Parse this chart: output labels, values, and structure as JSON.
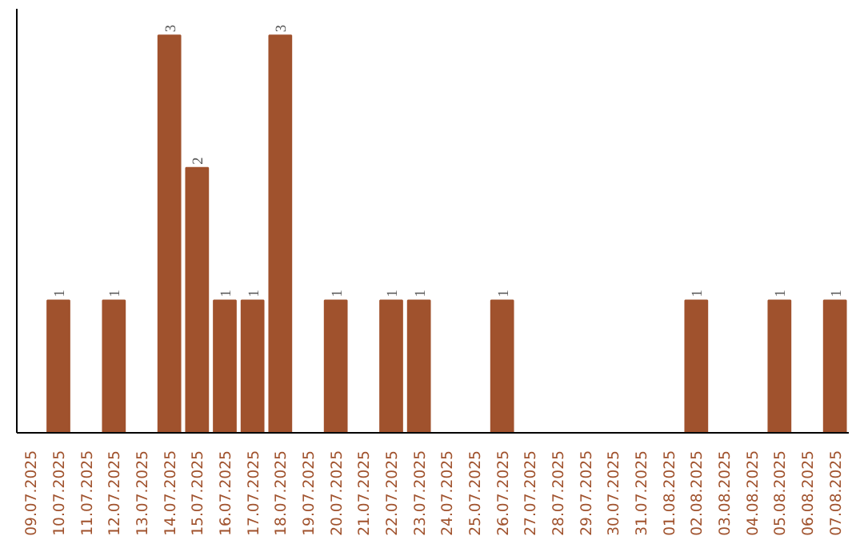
{
  "chart_data": {
    "type": "bar",
    "categories": [
      "09.07.2025",
      "10.07.2025",
      "11.07.2025",
      "12.07.2025",
      "13.07.2025",
      "14.07.2025",
      "15.07.2025",
      "16.07.2025",
      "17.07.2025",
      "18.07.2025",
      "19.07.2025",
      "20.07.2025",
      "21.07.2025",
      "22.07.2025",
      "23.07.2025",
      "24.07.2025",
      "25.07.2025",
      "26.07.2025",
      "27.07.2025",
      "28.07.2025",
      "29.07.2025",
      "30.07.2025",
      "31.07.2025",
      "01.08.2025",
      "02.08.2025",
      "03.08.2025",
      "04.08.2025",
      "05.08.2025",
      "06.08.2025",
      "07.08.2025"
    ],
    "values": [
      0,
      1,
      0,
      1,
      0,
      3,
      2,
      1,
      1,
      3,
      0,
      1,
      0,
      1,
      1,
      0,
      0,
      1,
      0,
      0,
      0,
      0,
      0,
      0,
      1,
      0,
      0,
      1,
      0,
      1
    ],
    "value_labels": [
      null,
      "1",
      null,
      "1",
      null,
      "3",
      "2",
      "1",
      "1",
      "3",
      null,
      "1",
      null,
      "1",
      "1",
      null,
      null,
      "1",
      null,
      null,
      null,
      null,
      null,
      null,
      "1",
      null,
      null,
      "1",
      null,
      "1"
    ],
    "color": "#a0522d",
    "ylim": [
      0,
      3.2
    ],
    "grid": false,
    "tick_labels": "x"
  }
}
